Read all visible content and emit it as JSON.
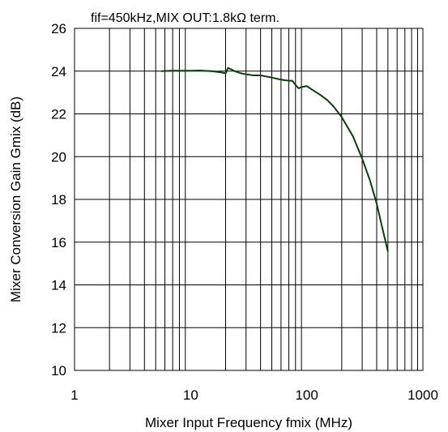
{
  "chart_data": {
    "type": "line",
    "title": "",
    "annotation": "fif=450kHz,MIX OUT:1.8kΩ term.",
    "xlabel": "Mixer Input Frequency fmix (MHz)",
    "ylabel": "Mixer Conversion Gain Gmix (dB)",
    "x_scale": "log",
    "xlim": [
      1,
      1000
    ],
    "ylim": [
      10,
      26
    ],
    "x_ticks": [
      1,
      10,
      100,
      1000
    ],
    "x_tick_labels": [
      "1",
      "10",
      "100",
      "1000"
    ],
    "y_ticks": [
      10,
      12,
      14,
      16,
      18,
      20,
      22,
      24,
      26
    ],
    "y_tick_labels": [
      "10",
      "12",
      "14",
      "16",
      "18",
      "20",
      "22",
      "24",
      "26"
    ],
    "grid": true,
    "line_color": "#0f3d0f",
    "series": [
      {
        "x": [
          5.6,
          7,
          10,
          12,
          15,
          18,
          20,
          21,
          22,
          24,
          27,
          30,
          35,
          40,
          50,
          60,
          70,
          75,
          80,
          85,
          90,
          100,
          110,
          130,
          150,
          170,
          200,
          250,
          300,
          350,
          400,
          450,
          500
        ],
        "y": [
          24.0,
          24.02,
          24.02,
          24.03,
          24.0,
          23.95,
          23.9,
          24.15,
          24.1,
          24.0,
          23.9,
          23.85,
          23.8,
          23.8,
          23.7,
          23.6,
          23.55,
          23.55,
          23.35,
          23.2,
          23.25,
          23.3,
          23.15,
          22.9,
          22.65,
          22.35,
          21.85,
          20.95,
          19.9,
          18.9,
          17.8,
          16.6,
          15.55
        ]
      }
    ]
  }
}
